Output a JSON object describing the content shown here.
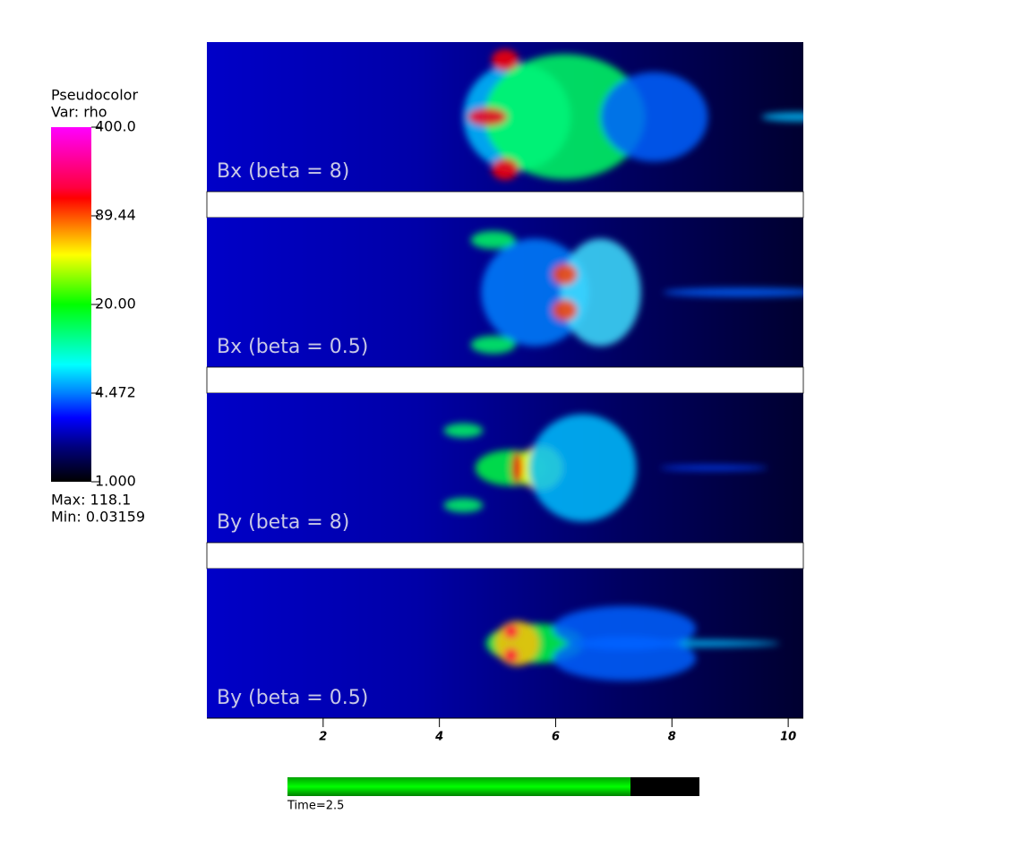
{
  "chart_data": {
    "type": "pseudocolor",
    "legend_title": "Pseudocolor",
    "legend_subtitle": "Var: rho",
    "colorbar": {
      "log": true,
      "lim": [
        1,
        400
      ],
      "ticks": [
        {
          "value": 1,
          "label": "1.000"
        },
        {
          "value": 4.472,
          "label": "4.472"
        },
        {
          "value": 20,
          "label": "20.00"
        },
        {
          "value": 89.44,
          "label": "89.44"
        },
        {
          "value": 400,
          "label": "400.0"
        }
      ]
    },
    "max_label": "Max:  118.1",
    "min_label": "Min:  0.03159",
    "xlim": [
      0,
      10.26
    ],
    "xticks": [
      2,
      4,
      6,
      8,
      10
    ],
    "panels": [
      "Bx (beta = 8)",
      "Bx (beta = 0.5)",
      "By (beta = 8)",
      "By (beta = 0.5)"
    ],
    "time_label": "Time=2.5"
  }
}
